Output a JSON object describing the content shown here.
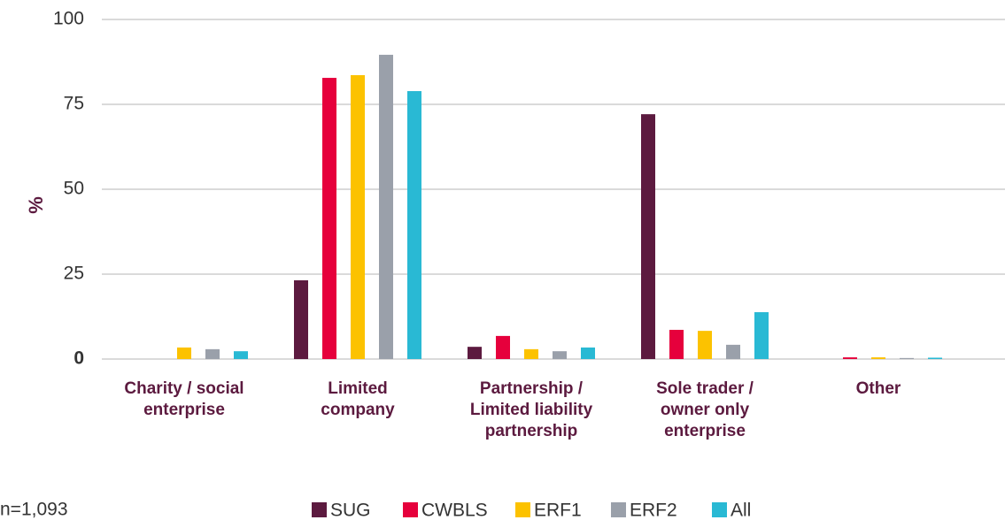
{
  "chart_data": {
    "type": "bar",
    "y_label": "%",
    "note": "n=1,093",
    "categories": [
      [
        "Charity / social",
        "enterprise"
      ],
      [
        "Limited",
        "company"
      ],
      [
        "Partnership /",
        "Limited liability",
        "partnership"
      ],
      [
        "Sole trader /",
        "owner only",
        "enterprise"
      ],
      [
        "Other"
      ]
    ],
    "series": [
      {
        "name": "SUG",
        "color": "#5c1a3f",
        "values": [
          0,
          23.2,
          3.6,
          72.1,
          0
        ]
      },
      {
        "name": "CWBLS",
        "color": "#e6003c",
        "values": [
          0,
          82.8,
          6.8,
          8.6,
          0.5
        ]
      },
      {
        "name": "ERF1",
        "color": "#fcc200",
        "values": [
          3.4,
          83.6,
          2.9,
          8.3,
          0.5
        ]
      },
      {
        "name": "ERF2",
        "color": "#9aa0aa",
        "values": [
          2.9,
          89.6,
          2.3,
          4.2,
          0.3
        ]
      },
      {
        "name": "All",
        "color": "#29b9d4",
        "values": [
          2.3,
          78.9,
          3.4,
          13.8,
          0.4
        ]
      }
    ],
    "ylim": [
      0,
      100
    ],
    "yticks": [
      0,
      25,
      50,
      75,
      100
    ],
    "grid": true,
    "legend": "bottom"
  }
}
